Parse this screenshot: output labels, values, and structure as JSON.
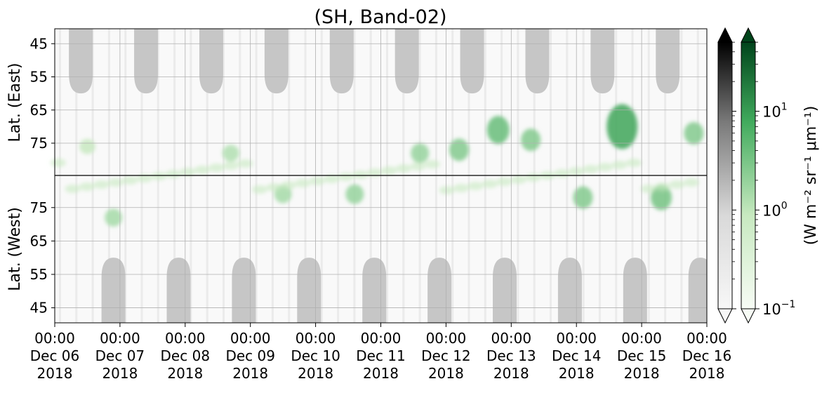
{
  "chart_data": {
    "type": "heatmap",
    "title": "(SH, Band-02)",
    "panels": [
      {
        "name": "east",
        "ylabel": "Lat. (East)",
        "yticks": [
          45,
          55,
          65,
          75
        ]
      },
      {
        "name": "west",
        "ylabel": "Lat. (West)",
        "yticks": [
          75,
          65,
          55,
          45
        ]
      }
    ],
    "x_ticks": [
      {
        "time": "00:00",
        "date": "Dec 06",
        "year": "2018"
      },
      {
        "time": "00:00",
        "date": "Dec 07",
        "year": "2018"
      },
      {
        "time": "00:00",
        "date": "Dec 08",
        "year": "2018"
      },
      {
        "time": "00:00",
        "date": "Dec 09",
        "year": "2018"
      },
      {
        "time": "00:00",
        "date": "Dec 10",
        "year": "2018"
      },
      {
        "time": "00:00",
        "date": "Dec 11",
        "year": "2018"
      },
      {
        "time": "00:00",
        "date": "Dec 12",
        "year": "2018"
      },
      {
        "time": "00:00",
        "date": "Dec 13",
        "year": "2018"
      },
      {
        "time": "00:00",
        "date": "Dec 14",
        "year": "2018"
      },
      {
        "time": "00:00",
        "date": "Dec 15",
        "year": "2018"
      },
      {
        "time": "00:00",
        "date": "Dec 16",
        "year": "2018"
      }
    ],
    "colorbars": [
      {
        "name": "gray",
        "colors": [
          "#f7f7f7",
          "#bdbdbd",
          "#636363",
          "#000000"
        ],
        "extend": "both"
      },
      {
        "name": "green",
        "colors": [
          "#f7fcf5",
          "#a1d99b",
          "#41ab5d",
          "#00441b"
        ],
        "extend": "both"
      }
    ],
    "colorbar_ticks": [
      {
        "base": "10",
        "exp": "1",
        "value": 10
      },
      {
        "base": "10",
        "exp": "0",
        "value": 1
      },
      {
        "base": "10",
        "exp": "−1",
        "value": 0.1
      }
    ],
    "colorbar_label": "(W m⁻² sr⁻¹ μm⁻¹)",
    "grid": true,
    "scale": "log",
    "daylight_gray_columns": [
      {
        "panel": "east",
        "center_day": 0.4
      },
      {
        "panel": "east",
        "center_day": 1.4
      },
      {
        "panel": "east",
        "center_day": 2.4
      },
      {
        "panel": "east",
        "center_day": 3.4
      },
      {
        "panel": "east",
        "center_day": 4.4
      },
      {
        "panel": "east",
        "center_day": 5.4
      },
      {
        "panel": "east",
        "center_day": 6.4
      },
      {
        "panel": "east",
        "center_day": 7.4
      },
      {
        "panel": "east",
        "center_day": 8.4
      },
      {
        "panel": "east",
        "center_day": 9.4
      },
      {
        "panel": "west",
        "center_day": 0.9
      },
      {
        "panel": "west",
        "center_day": 1.9
      },
      {
        "panel": "west",
        "center_day": 2.9
      },
      {
        "panel": "west",
        "center_day": 3.9
      },
      {
        "panel": "west",
        "center_day": 4.9
      },
      {
        "panel": "west",
        "center_day": 5.9
      },
      {
        "panel": "west",
        "center_day": 6.9
      },
      {
        "panel": "west",
        "center_day": 7.9
      },
      {
        "panel": "west",
        "center_day": 8.9
      },
      {
        "panel": "west",
        "center_day": 9.9
      }
    ],
    "aurora_blobs": [
      {
        "day": 0.5,
        "lat": 76,
        "side": "east",
        "intensity": 0.7
      },
      {
        "day": 0.9,
        "lat": 72,
        "side": "west",
        "intensity": 1.2
      },
      {
        "day": 2.7,
        "lat": 78,
        "side": "east",
        "intensity": 1.0
      },
      {
        "day": 3.5,
        "lat": 79,
        "side": "west",
        "intensity": 1.2
      },
      {
        "day": 4.6,
        "lat": 79,
        "side": "west",
        "intensity": 1.5
      },
      {
        "day": 5.6,
        "lat": 78,
        "side": "east",
        "intensity": 1.5
      },
      {
        "day": 6.2,
        "lat": 77,
        "side": "east",
        "intensity": 2.0
      },
      {
        "day": 6.8,
        "lat": 71,
        "side": "east",
        "intensity": 3.0
      },
      {
        "day": 7.3,
        "lat": 74,
        "side": "east",
        "intensity": 2.0
      },
      {
        "day": 8.1,
        "lat": 78,
        "side": "west",
        "intensity": 2.0
      },
      {
        "day": 8.7,
        "lat": 70,
        "side": "east",
        "intensity": 6.0
      },
      {
        "day": 9.3,
        "lat": 78,
        "side": "west",
        "intensity": 2.5
      },
      {
        "day": 9.8,
        "lat": 72,
        "side": "east",
        "intensity": 2.0
      }
    ]
  }
}
